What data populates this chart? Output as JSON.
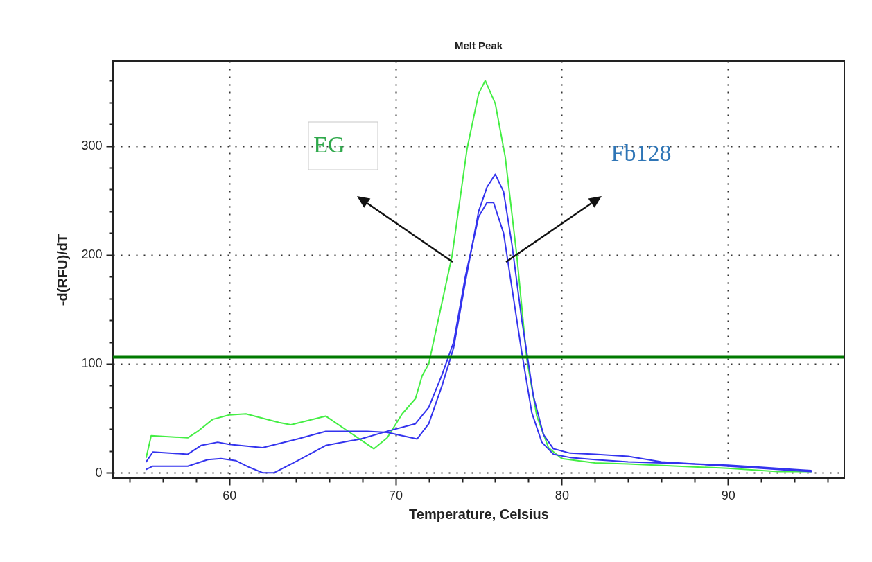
{
  "chart_data": {
    "type": "line",
    "title": "Melt Peak",
    "xlabel": "Temperature, Celsius",
    "ylabel": "-d(RFU)/dT",
    "xlim": [
      53,
      97
    ],
    "ylim": [
      -5,
      378
    ],
    "xticks": [
      {
        "value": 54,
        "label": null
      },
      {
        "value": 56,
        "label": null
      },
      {
        "value": 58,
        "label": null
      },
      60,
      {
        "value": 62,
        "label": null
      },
      {
        "value": 64,
        "label": null
      },
      {
        "value": 66,
        "label": null
      },
      {
        "value": 68,
        "label": null
      },
      70,
      {
        "value": 72,
        "label": null
      },
      {
        "value": 74,
        "label": null
      },
      {
        "value": 76,
        "label": null
      },
      {
        "value": 78,
        "label": null
      },
      80,
      {
        "value": 82,
        "label": null
      },
      {
        "value": 84,
        "label": null
      },
      {
        "value": 86,
        "label": null
      },
      {
        "value": 88,
        "label": null
      },
      90,
      {
        "value": 92,
        "label": null
      },
      {
        "value": 94,
        "label": null
      },
      {
        "value": 96,
        "label": null
      }
    ],
    "yticks": [
      0,
      {
        "value": 20,
        "label": null
      },
      {
        "value": 40,
        "label": null
      },
      {
        "value": 60,
        "label": null
      },
      {
        "value": 80,
        "label": null
      },
      100,
      {
        "value": 120,
        "label": null
      },
      {
        "value": 140,
        "label": null
      },
      {
        "value": 160,
        "label": null
      },
      {
        "value": 180,
        "label": null
      },
      200,
      {
        "value": 220,
        "label": null
      },
      {
        "value": 240,
        "label": null
      },
      {
        "value": 260,
        "label": null
      },
      {
        "value": 280,
        "label": null
      },
      300,
      {
        "value": 320,
        "label": null
      },
      {
        "value": 340,
        "label": null
      },
      {
        "value": 360,
        "label": null
      }
    ],
    "grid": true,
    "legend": false,
    "marker": "none",
    "line_style": "solid",
    "series": [
      {
        "color": "#44ee44",
        "x": [
          55,
          55.3,
          57.5,
          58.1,
          59,
          60,
          61,
          63,
          63.7,
          65.8,
          68.7,
          69.5,
          70.4,
          71.2,
          71.6,
          72,
          73.4,
          74.3,
          75,
          75.4,
          76,
          76.6,
          77.3,
          77.9,
          78.5,
          79.2,
          80,
          82,
          84,
          87,
          90,
          93,
          95
        ],
        "values": [
          14,
          34,
          32,
          38,
          49,
          53,
          54,
          46,
          44,
          52,
          22,
          32,
          54,
          68,
          89,
          100,
          199,
          297,
          348,
          360,
          339,
          290,
          199,
          104,
          52,
          23,
          13,
          9,
          8,
          6,
          4,
          1,
          1
        ]
      },
      {
        "color": "#3333ee",
        "x": [
          55,
          55.4,
          57.5,
          58.3,
          59.3,
          60,
          62,
          64.1,
          65.8,
          68.3,
          69.5,
          71.3,
          72,
          72.8,
          73.5,
          74.2,
          75,
          75.5,
          76,
          76.5,
          77,
          77.6,
          78.3,
          78.9,
          79.5,
          80.5,
          82,
          84,
          86,
          88,
          90,
          92,
          94,
          95
        ],
        "values": [
          10,
          19,
          17,
          25,
          28,
          26,
          23,
          31,
          38,
          38,
          37,
          31,
          45,
          80,
          115,
          175,
          240,
          262,
          274,
          258,
          210,
          140,
          70,
          35,
          22,
          18,
          17,
          15,
          10,
          8,
          7,
          5,
          3,
          2
        ]
      },
      {
        "color": "#3333ee",
        "x": [
          55,
          55.4,
          57.5,
          58.7,
          59.5,
          60.4,
          61.2,
          62,
          62.7,
          64.1,
          65.8,
          67.9,
          69.5,
          71.2,
          72,
          72.8,
          73.5,
          74.2,
          75,
          75.5,
          75.9,
          76.5,
          77,
          77.6,
          78.2,
          78.8,
          79.5,
          80.5,
          82,
          84,
          86,
          88,
          90,
          92,
          94,
          95
        ],
        "values": [
          3,
          6,
          6,
          12,
          13,
          11,
          5,
          0,
          0,
          11,
          25,
          31,
          38,
          45,
          60,
          90,
          120,
          180,
          235,
          248,
          248,
          220,
          170,
          110,
          55,
          28,
          17,
          14,
          12,
          10,
          9,
          8,
          6,
          4,
          2,
          1
        ]
      }
    ],
    "ref_lines": [
      {
        "axis": "y",
        "value": 106,
        "color": "#007a00",
        "line_style": "solid"
      }
    ],
    "annotations": [
      "EG",
      "Fb128"
    ]
  }
}
